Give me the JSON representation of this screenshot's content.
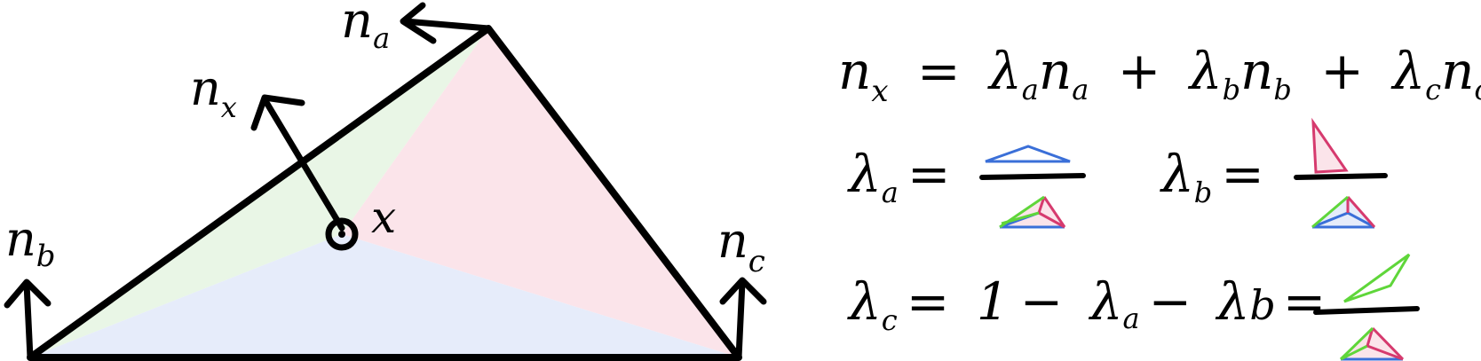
{
  "diagram": {
    "normals": {
      "na": {
        "base": "n",
        "sub": "a"
      },
      "nb": {
        "base": "n",
        "sub": "b"
      },
      "nc": {
        "base": "n",
        "sub": "c"
      },
      "nx": {
        "base": "n",
        "sub": "x"
      }
    },
    "point_label": "x",
    "colors": {
      "outline": "#000000",
      "region_a": "#e9f6e6",
      "region_b": "#fbe4ea",
      "region_c": "#e6ecfa",
      "blue": "#3a6fd8",
      "pink": "#d63a6e",
      "green": "#5fd63a"
    }
  },
  "formulas": {
    "main": {
      "lhs": {
        "base": "n",
        "sub": "x"
      },
      "eq": "=",
      "terms": [
        {
          "lambda": "λ",
          "lsub": "a",
          "n": "n",
          "nsub": "a"
        },
        {
          "lambda": "λ",
          "lsub": "b",
          "n": "n",
          "nsub": "b"
        },
        {
          "lambda": "λ",
          "lsub": "c",
          "n": "n",
          "nsub": "c"
        }
      ],
      "plus": "+"
    },
    "lambda_a": {
      "lambda": "λ",
      "sub": "a",
      "eq": "="
    },
    "lambda_b": {
      "lambda": "λ",
      "sub": "b",
      "eq": "="
    },
    "lambda_c": {
      "lambda": "λ",
      "sub": "c",
      "eq": "=",
      "one": "1",
      "minus": "−",
      "t1": {
        "lambda": "λ",
        "sub": "a"
      },
      "t2": {
        "lambda": "λ",
        "sub": "b"
      }
    }
  }
}
